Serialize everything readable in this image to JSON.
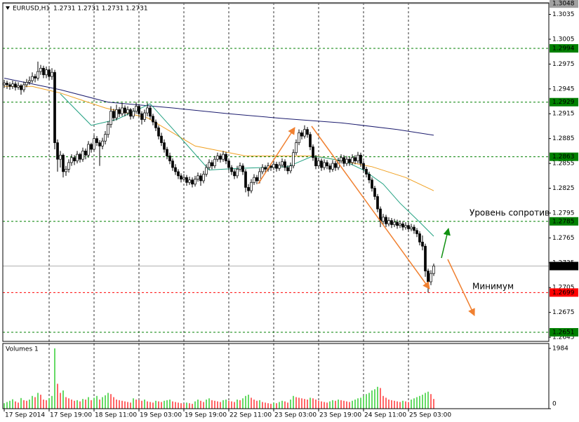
{
  "chart_data": {
    "type": "candlestick",
    "symbol": "EURUSD,H1",
    "quote_text": "1.2731 1.2731 1.2731 1.2731",
    "up_color": "#ffffff",
    "down_color": "#000000",
    "outline_color": "#000000",
    "grid": true,
    "xlim": [
      -0.5,
      194
    ],
    "ylim": [
      1.264,
      1.3049
    ],
    "yticks": [
      1.3035,
      1.3005,
      1.2975,
      1.2945,
      1.2915,
      1.2885,
      1.2855,
      1.2825,
      1.2795,
      1.2765,
      1.2735,
      1.2705,
      1.2675,
      1.2645
    ],
    "xticks": [
      {
        "value": 0,
        "label": "17 Sep 2014"
      },
      {
        "value": 16,
        "label": "17 Sep 19:00"
      },
      {
        "value": 32,
        "label": "18 Sep 11:00"
      },
      {
        "value": 48,
        "label": "19 Sep 03:00"
      },
      {
        "value": 64,
        "label": "19 Sep 19:00"
      },
      {
        "value": 80,
        "label": "22 Sep 11:00"
      },
      {
        "value": 96,
        "label": "23 Sep 03:00"
      },
      {
        "value": 112,
        "label": "23 Sep 19:00"
      },
      {
        "value": 128,
        "label": "24 Sep 11:00"
      },
      {
        "value": 144,
        "label": "25 Sep 03:00"
      }
    ],
    "levels": [
      {
        "value": 1.3048,
        "color": "#a0a0a0",
        "style": "solid"
      },
      {
        "value": 1.2994,
        "color": "#008000",
        "style": "dashed"
      },
      {
        "value": 1.2929,
        "color": "#008000",
        "style": "dashed"
      },
      {
        "value": 1.2863,
        "color": "#008000",
        "style": "dashed"
      },
      {
        "value": 1.2785,
        "color": "#008000",
        "style": "dashed"
      },
      {
        "value": 1.2731,
        "color": "#000000",
        "style": "solid"
      },
      {
        "value": 1.2699,
        "color": "#ff0000",
        "style": "dashed"
      },
      {
        "value": 1.2651,
        "color": "#008000",
        "style": "dashed"
      }
    ],
    "ma_lines": [
      {
        "color": "#1c1c6e",
        "x": [
          0,
          20,
          37,
          60,
          80,
          100,
          120,
          140,
          153
        ],
        "values": [
          1.2958,
          1.2944,
          1.2929,
          1.2922,
          1.2915,
          1.2909,
          1.2904,
          1.2896,
          1.2889
        ]
      },
      {
        "color": "#f0a020",
        "x": [
          0,
          10,
          20,
          36,
          51,
          68,
          86,
          111,
          131,
          143,
          153
        ],
        "values": [
          1.2948,
          1.2948,
          1.294,
          1.2922,
          1.291,
          1.2876,
          1.2864,
          1.2864,
          1.2851,
          1.2838,
          1.2822
        ]
      },
      {
        "color": "#20a080",
        "x": [
          20,
          31,
          40,
          52,
          61,
          73,
          83,
          101,
          110,
          121,
          128,
          135,
          141,
          148,
          153
        ],
        "values": [
          1.2939,
          1.2901,
          1.2908,
          1.2927,
          1.2893,
          1.2847,
          1.2849,
          1.2851,
          1.2864,
          1.2858,
          1.2847,
          1.283,
          1.2807,
          1.2784,
          1.2767
        ]
      }
    ],
    "annotations": [
      "Уровень сопротивл",
      "Минимум"
    ],
    "candles": [
      [
        1.295,
        1.2956,
        1.2946,
        1.2952
      ],
      [
        1.2952,
        1.2955,
        1.2945,
        1.295
      ],
      [
        1.295,
        1.2953,
        1.2944,
        1.2948
      ],
      [
        1.2948,
        1.2955,
        1.2945,
        1.2951
      ],
      [
        1.2951,
        1.2954,
        1.2943,
        1.2947
      ],
      [
        1.2947,
        1.2953,
        1.2944,
        1.2949
      ],
      [
        1.2949,
        1.2951,
        1.2938,
        1.2944
      ],
      [
        1.2944,
        1.2954,
        1.2941,
        1.295
      ],
      [
        1.295,
        1.2957,
        1.2947,
        1.2953
      ],
      [
        1.2953,
        1.296,
        1.295,
        1.2955
      ],
      [
        1.2955,
        1.2965,
        1.2952,
        1.296
      ],
      [
        1.296,
        1.2963,
        1.2953,
        1.2958
      ],
      [
        1.2958,
        1.2978,
        1.2955,
        1.2966
      ],
      [
        1.2966,
        1.2974,
        1.2962,
        1.297
      ],
      [
        1.297,
        1.2973,
        1.2958,
        1.2962
      ],
      [
        1.2962,
        1.2972,
        1.2958,
        1.2968
      ],
      [
        1.2968,
        1.297,
        1.2955,
        1.296
      ],
      [
        1.296,
        1.297,
        1.2956,
        1.2965
      ],
      [
        1.2965,
        1.2968,
        1.2872,
        1.288
      ],
      [
        1.288,
        1.2884,
        1.2845,
        1.286
      ],
      [
        1.286,
        1.287,
        1.285,
        1.2865
      ],
      [
        1.2865,
        1.2867,
        1.2838,
        1.2845
      ],
      [
        1.2845,
        1.2852,
        1.284,
        1.2848
      ],
      [
        1.2848,
        1.286,
        1.2844,
        1.2856
      ],
      [
        1.2856,
        1.2866,
        1.2852,
        1.2862
      ],
      [
        1.2862,
        1.2865,
        1.2853,
        1.2858
      ],
      [
        1.2858,
        1.287,
        1.2855,
        1.2866
      ],
      [
        1.2866,
        1.2868,
        1.2856,
        1.286
      ],
      [
        1.286,
        1.2874,
        1.2857,
        1.287
      ],
      [
        1.287,
        1.2873,
        1.286,
        1.2865
      ],
      [
        1.2865,
        1.2882,
        1.2862,
        1.2878
      ],
      [
        1.2878,
        1.288,
        1.2868,
        1.2872
      ],
      [
        1.2872,
        1.2889,
        1.287,
        1.2885
      ],
      [
        1.2885,
        1.2888,
        1.2876,
        1.288
      ],
      [
        1.288,
        1.2883,
        1.2852,
        1.2876
      ],
      [
        1.2876,
        1.2886,
        1.2872,
        1.2882
      ],
      [
        1.2882,
        1.2894,
        1.2878,
        1.289
      ],
      [
        1.289,
        1.2906,
        1.2886,
        1.2902
      ],
      [
        1.2902,
        1.2924,
        1.2898,
        1.2918
      ],
      [
        1.2918,
        1.2921,
        1.2906,
        1.291
      ],
      [
        1.291,
        1.2926,
        1.2907,
        1.292
      ],
      [
        1.292,
        1.2923,
        1.2911,
        1.2915
      ],
      [
        1.2915,
        1.2928,
        1.2912,
        1.2922
      ],
      [
        1.2922,
        1.2925,
        1.2912,
        1.2916
      ],
      [
        1.2916,
        1.2924,
        1.2913,
        1.292
      ],
      [
        1.292,
        1.2922,
        1.2908,
        1.2912
      ],
      [
        1.2912,
        1.2922,
        1.2909,
        1.2918
      ],
      [
        1.2918,
        1.2929,
        1.2915,
        1.2924
      ],
      [
        1.2924,
        1.2926,
        1.2911,
        1.2915
      ],
      [
        1.2915,
        1.2918,
        1.2902,
        1.2908
      ],
      [
        1.2908,
        1.292,
        1.2905,
        1.2916
      ],
      [
        1.2916,
        1.2928,
        1.2912,
        1.2922
      ],
      [
        1.2922,
        1.2925,
        1.2908,
        1.2912
      ],
      [
        1.2912,
        1.2915,
        1.2901,
        1.2905
      ],
      [
        1.2905,
        1.2908,
        1.2894,
        1.2898
      ],
      [
        1.2898,
        1.2901,
        1.2884,
        1.2888
      ],
      [
        1.2888,
        1.2892,
        1.2876,
        1.288
      ],
      [
        1.288,
        1.2884,
        1.2868,
        1.2872
      ],
      [
        1.2872,
        1.2875,
        1.286,
        1.2864
      ],
      [
        1.2864,
        1.2868,
        1.2854,
        1.2858
      ],
      [
        1.2858,
        1.2861,
        1.2846,
        1.285
      ],
      [
        1.285,
        1.2854,
        1.2841,
        1.2845
      ],
      [
        1.2845,
        1.2848,
        1.2836,
        1.284
      ],
      [
        1.284,
        1.2843,
        1.2832,
        1.2836
      ],
      [
        1.2836,
        1.2842,
        1.2833,
        1.2838
      ],
      [
        1.2838,
        1.2841,
        1.2828,
        1.2832
      ],
      [
        1.2832,
        1.2839,
        1.2829,
        1.2835
      ],
      [
        1.2835,
        1.2838,
        1.2826,
        1.283
      ],
      [
        1.283,
        1.284,
        1.2827,
        1.2836
      ],
      [
        1.2836,
        1.2844,
        1.2833,
        1.284
      ],
      [
        1.284,
        1.2843,
        1.2828,
        1.2834
      ],
      [
        1.2834,
        1.2846,
        1.2831,
        1.2842
      ],
      [
        1.2842,
        1.2854,
        1.2839,
        1.285
      ],
      [
        1.285,
        1.286,
        1.2847,
        1.2856
      ],
      [
        1.2856,
        1.2859,
        1.2848,
        1.2852
      ],
      [
        1.2852,
        1.2864,
        1.2849,
        1.286
      ],
      [
        1.286,
        1.2868,
        1.2857,
        1.2864
      ],
      [
        1.2864,
        1.2867,
        1.2856,
        1.286
      ],
      [
        1.286,
        1.287,
        1.2857,
        1.2866
      ],
      [
        1.2866,
        1.2869,
        1.2854,
        1.2858
      ],
      [
        1.2858,
        1.2861,
        1.2846,
        1.285
      ],
      [
        1.285,
        1.2853,
        1.2841,
        1.2845
      ],
      [
        1.2845,
        1.2848,
        1.2836,
        1.284
      ],
      [
        1.284,
        1.2852,
        1.2837,
        1.2848
      ],
      [
        1.2848,
        1.2856,
        1.2845,
        1.2852
      ],
      [
        1.2852,
        1.2855,
        1.2841,
        1.2845
      ],
      [
        1.2845,
        1.2848,
        1.282,
        1.2826
      ],
      [
        1.2826,
        1.283,
        1.2815,
        1.2822
      ],
      [
        1.2822,
        1.2836,
        1.2819,
        1.2832
      ],
      [
        1.2832,
        1.2842,
        1.2829,
        1.2838
      ],
      [
        1.2838,
        1.2841,
        1.283,
        1.2834
      ],
      [
        1.2834,
        1.2849,
        1.2831,
        1.2845
      ],
      [
        1.2845,
        1.2854,
        1.2842,
        1.285
      ],
      [
        1.285,
        1.2853,
        1.2844,
        1.2848
      ],
      [
        1.2848,
        1.2856,
        1.2845,
        1.2852
      ],
      [
        1.2852,
        1.2855,
        1.2846,
        1.285
      ],
      [
        1.285,
        1.2858,
        1.2847,
        1.2854
      ],
      [
        1.2854,
        1.2857,
        1.2845,
        1.2849
      ],
      [
        1.2849,
        1.2857,
        1.2846,
        1.2853
      ],
      [
        1.2853,
        1.2861,
        1.285,
        1.2857
      ],
      [
        1.2857,
        1.286,
        1.2846,
        1.285
      ],
      [
        1.285,
        1.2853,
        1.2842,
        1.2846
      ],
      [
        1.2846,
        1.2856,
        1.2843,
        1.2852
      ],
      [
        1.2852,
        1.2872,
        1.2849,
        1.2868
      ],
      [
        1.2868,
        1.2884,
        1.2865,
        1.288
      ],
      [
        1.288,
        1.2896,
        1.2877,
        1.2892
      ],
      [
        1.2892,
        1.2895,
        1.2884,
        1.2888
      ],
      [
        1.2888,
        1.2901,
        1.2885,
        1.2896
      ],
      [
        1.2896,
        1.2899,
        1.2886,
        1.289
      ],
      [
        1.289,
        1.2893,
        1.2871,
        1.2875
      ],
      [
        1.2875,
        1.2878,
        1.2858,
        1.2862
      ],
      [
        1.2862,
        1.2865,
        1.2848,
        1.2852
      ],
      [
        1.2852,
        1.2862,
        1.2849,
        1.2858
      ],
      [
        1.2858,
        1.2861,
        1.2846,
        1.285
      ],
      [
        1.285,
        1.286,
        1.2847,
        1.2856
      ],
      [
        1.2856,
        1.2859,
        1.2848,
        1.2852
      ],
      [
        1.2852,
        1.2855,
        1.2844,
        1.2848
      ],
      [
        1.2848,
        1.2859,
        1.2845,
        1.2855
      ],
      [
        1.2855,
        1.2858,
        1.2846,
        1.285
      ],
      [
        1.285,
        1.2862,
        1.2847,
        1.2858
      ],
      [
        1.2858,
        1.2866,
        1.2855,
        1.2862
      ],
      [
        1.2862,
        1.2865,
        1.2851,
        1.2855
      ],
      [
        1.2855,
        1.2864,
        1.2852,
        1.286
      ],
      [
        1.286,
        1.2863,
        1.2852,
        1.2856
      ],
      [
        1.2856,
        1.2866,
        1.2853,
        1.2862
      ],
      [
        1.2862,
        1.2865,
        1.2854,
        1.2858
      ],
      [
        1.2858,
        1.2869,
        1.2855,
        1.2865
      ],
      [
        1.2865,
        1.2868,
        1.2851,
        1.2855
      ],
      [
        1.2855,
        1.2858,
        1.2844,
        1.2848
      ],
      [
        1.2848,
        1.2851,
        1.2838,
        1.2842
      ],
      [
        1.2842,
        1.2845,
        1.2831,
        1.2835
      ],
      [
        1.2835,
        1.2838,
        1.2821,
        1.2825
      ],
      [
        1.2825,
        1.2828,
        1.2811,
        1.2815
      ],
      [
        1.2815,
        1.2818,
        1.2796,
        1.28
      ],
      [
        1.28,
        1.2803,
        1.2778,
        1.2785
      ],
      [
        1.2785,
        1.2794,
        1.2781,
        1.279
      ],
      [
        1.279,
        1.2793,
        1.2778,
        1.2782
      ],
      [
        1.2782,
        1.279,
        1.2779,
        1.2786
      ],
      [
        1.2786,
        1.2789,
        1.2777,
        1.2781
      ],
      [
        1.2781,
        1.2788,
        1.2778,
        1.2784
      ],
      [
        1.2784,
        1.2787,
        1.2776,
        1.278
      ],
      [
        1.278,
        1.2786,
        1.2777,
        1.2782
      ],
      [
        1.2782,
        1.2785,
        1.2774,
        1.2778
      ],
      [
        1.2778,
        1.2784,
        1.2775,
        1.278
      ],
      [
        1.278,
        1.2783,
        1.2772,
        1.2776
      ],
      [
        1.2776,
        1.2782,
        1.2773,
        1.2778
      ],
      [
        1.2778,
        1.2781,
        1.277,
        1.2774
      ],
      [
        1.2774,
        1.2777,
        1.2766,
        1.277
      ],
      [
        1.277,
        1.2773,
        1.2756,
        1.276
      ],
      [
        1.276,
        1.2768,
        1.275,
        1.2755
      ],
      [
        1.2755,
        1.2758,
        1.2718,
        1.2725
      ],
      [
        1.2725,
        1.2728,
        1.2699,
        1.2712
      ],
      [
        1.2712,
        1.2726,
        1.2708,
        1.2722
      ],
      [
        1.2722,
        1.2734,
        1.2719,
        1.2731
      ]
    ],
    "volume": {
      "title": "Volumes 1",
      "ylim": [
        0,
        1984
      ],
      "yticks": [
        1984,
        0
      ],
      "up_color": "#00c000",
      "down_color": "#ff0000",
      "values": [
        180,
        220,
        260,
        310,
        240,
        200,
        350,
        280,
        260,
        300,
        420,
        380,
        520,
        460,
        300,
        280,
        350,
        420,
        1984,
        820,
        520,
        600,
        380,
        340,
        300,
        260,
        280,
        240,
        320,
        300,
        380,
        280,
        360,
        420,
        300,
        380,
        440,
        520,
        480,
        380,
        300,
        280,
        260,
        240,
        220,
        200,
        340,
        300,
        280,
        260,
        300,
        240,
        220,
        200,
        260,
        240,
        220,
        260,
        280,
        300,
        240,
        220,
        200,
        180,
        160,
        200,
        180,
        160,
        240,
        300,
        260,
        220,
        300,
        340,
        280,
        260,
        240,
        220,
        280,
        300,
        260,
        240,
        220,
        300,
        280,
        340,
        420,
        460,
        360,
        300,
        260,
        280,
        220,
        200,
        180,
        160,
        200,
        180,
        220,
        260,
        240,
        200,
        300,
        420,
        380,
        360,
        340,
        320,
        300,
        360,
        340,
        300,
        260,
        240,
        220,
        200,
        240,
        280,
        260,
        300,
        280,
        260,
        240,
        220,
        260,
        300,
        340,
        360,
        420,
        480,
        520,
        600,
        640,
        720,
        680,
        420,
        360,
        300,
        280,
        260,
        240,
        220,
        260,
        240,
        220,
        300,
        340,
        380,
        420,
        460,
        520,
        560,
        480,
        320
      ]
    }
  }
}
